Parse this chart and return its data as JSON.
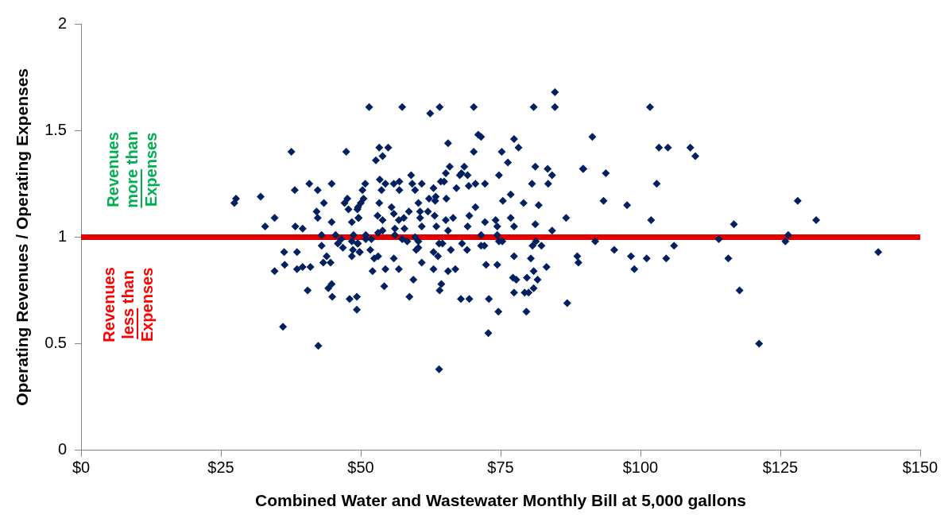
{
  "chart_data": {
    "type": "scatter",
    "xlabel": "Combined Water and Wastewater Monthly Bill at 5,000 gallons",
    "ylabel": "Operating Revenues / Operating Expenses",
    "xlim": [
      0,
      150
    ],
    "xticks": [
      {
        "value": 0,
        "label": "$0"
      },
      {
        "value": 25,
        "label": "$25"
      },
      {
        "value": 50,
        "label": "$50"
      },
      {
        "value": 75,
        "label": "$75"
      },
      {
        "value": 100,
        "label": "$100"
      },
      {
        "value": 125,
        "label": "$125"
      },
      {
        "value": 150,
        "label": "$150"
      }
    ],
    "ylim": [
      0,
      2
    ],
    "yticks": [
      0,
      0.5,
      1,
      1.5,
      2
    ],
    "grid": false,
    "legend": false,
    "marker": "diamond",
    "ref_lines": [
      {
        "axis": "y",
        "value": 1,
        "color": "#e00000"
      }
    ],
    "annotations": [
      "Revenues more than Expenses",
      "Revenues less than Expenses"
    ],
    "series": [
      {
        "color": "#002060",
        "x": [
          37.6,
          47.4,
          40.8,
          44.8,
          38.2,
          42.3,
          27.7,
          27.4,
          32.1,
          43.4,
          47.6,
          47.1,
          47.8,
          49.4,
          42.1,
          42.3,
          44.8,
          34.6,
          48.4,
          49.6,
          32.9,
          38.3,
          39.6,
          43.0,
          45.5,
          46.5,
          48.7,
          45.9,
          46.8,
          43.0,
          48.4,
          49.4,
          48.6,
          48.4,
          49.8,
          36.3,
          38.6,
          43.9,
          43.3,
          44.6,
          36.4,
          34.6,
          38.6,
          39.6,
          41.0,
          44.8,
          44.2,
          40.5,
          44.9,
          49.3,
          48.0,
          49.3,
          36.1,
          42.4,
          51.5,
          57.4,
          62.4,
          64.1,
          70.2,
          71.0,
          71.5,
          65.6,
          77.4,
          53.3,
          54.9,
          53.9,
          52.7,
          70.2,
          75.2,
          76.3,
          65.9,
          65.2,
          68.5,
          68.0,
          69.1,
          67.7,
          69.3,
          70.5,
          72.2,
          74.7,
          53.4,
          54.4,
          55.9,
          56.9,
          59.0,
          59.2,
          60.9,
          63.0,
          64.3,
          64.9,
          67.1,
          50.8,
          50.3,
          53.7,
          56.9,
          59.7,
          50.5,
          50.0,
          53.3,
          62.2,
          63.4,
          63.3,
          65.3,
          49.5,
          55.5,
          60.3,
          70.5,
          75.4,
          76.8,
          58.6,
          60.6,
          62.0,
          53.0,
          55.9,
          63.2,
          69.4,
          49.6,
          53.9,
          56.8,
          57.7,
          60.6,
          65.2,
          66.5,
          72.2,
          74.1,
          76.8,
          57.8,
          60.9,
          63.5,
          69.1,
          74.4,
          77.4,
          56.1,
          65.6,
          50.9,
          53.1,
          53.9,
          56.1,
          74.4,
          71.5,
          50.9,
          51.9,
          57.4,
          58.3,
          59.7,
          60.3,
          64.0,
          64.6,
          68.1,
          71.5,
          72.1,
          74.7,
          75.3,
          49.5,
          60.3,
          59.9,
          69.0,
          66.1,
          49.8,
          51.7,
          63.0,
          63.8,
          77.4,
          53.1,
          55.9,
          52.4,
          60.9,
          72.4,
          74.4,
          52.1,
          54.4,
          56.8,
          63.0,
          65.6,
          66.9,
          77.2,
          77.8,
          59.4,
          64.4,
          54.2,
          64.1,
          77.4,
          58.7,
          67.9,
          69.4,
          72.9,
          74.6,
          72.8,
          64.0,
          84.7,
          80.9,
          84.7,
          101.7,
          91.4,
          78.2,
          103.3,
          104.9,
          81.2,
          83.4,
          84.2,
          89.7,
          89.8,
          93.8,
          80.6,
          83.5,
          102.9,
          79.1,
          81.8,
          93.4,
          97.6,
          86.7,
          101.9,
          81.2,
          84.2,
          81.3,
          80.7,
          82.3,
          91.9,
          80.4,
          88.7,
          88.9,
          95.3,
          98.3,
          101.1,
          104.6,
          106.0,
          80.9,
          83.2,
          79.7,
          81.6,
          80.9,
          79.3,
          80.0,
          98.9,
          86.9,
          79.6,
          108.9,
          109.8,
          128.1,
          131.4,
          116.7,
          114.0,
          126.4,
          125.9,
          115.7,
          142.5,
          117.7,
          121.2
        ],
        "values": [
          1.4,
          1.4,
          1.25,
          1.25,
          1.22,
          1.22,
          1.18,
          1.16,
          1.19,
          1.16,
          1.18,
          1.16,
          1.13,
          1.13,
          1.12,
          1.09,
          1.07,
          1.09,
          1.07,
          1.09,
          1.05,
          1.05,
          1.04,
          1.01,
          1.01,
          0.99,
          1.01,
          0.97,
          0.95,
          0.96,
          0.98,
          0.97,
          0.94,
          0.91,
          0.93,
          0.93,
          0.93,
          0.91,
          0.88,
          0.88,
          0.87,
          0.84,
          0.85,
          0.86,
          0.86,
          0.78,
          0.76,
          0.75,
          0.72,
          0.72,
          0.71,
          0.66,
          0.58,
          0.49,
          1.61,
          1.61,
          1.58,
          1.61,
          1.61,
          1.48,
          1.47,
          1.44,
          1.46,
          1.42,
          1.42,
          1.38,
          1.36,
          1.4,
          1.4,
          1.35,
          1.33,
          1.3,
          1.33,
          1.3,
          1.29,
          1.29,
          1.24,
          1.25,
          1.25,
          1.29,
          1.27,
          1.25,
          1.25,
          1.26,
          1.29,
          1.25,
          1.25,
          1.23,
          1.26,
          1.26,
          1.23,
          1.25,
          1.22,
          1.22,
          1.22,
          1.22,
          1.18,
          1.16,
          1.16,
          1.18,
          1.19,
          1.17,
          1.18,
          1.14,
          1.14,
          1.16,
          1.14,
          1.17,
          1.2,
          1.12,
          1.12,
          1.12,
          1.1,
          1.11,
          1.1,
          1.1,
          1.09,
          1.08,
          1.08,
          1.09,
          1.09,
          1.08,
          1.09,
          1.07,
          1.08,
          1.09,
          1.04,
          1.05,
          1.05,
          1.05,
          1.05,
          1.05,
          1.04,
          1.03,
          1.01,
          1.02,
          1.03,
          1.01,
          1.01,
          1.01,
          0.99,
          0.99,
          0.99,
          0.98,
          1.0,
          0.98,
          0.97,
          0.97,
          0.97,
          0.96,
          0.96,
          0.98,
          0.98,
          0.97,
          0.95,
          0.94,
          0.94,
          0.94,
          0.93,
          0.94,
          0.93,
          0.91,
          0.91,
          0.91,
          0.9,
          0.9,
          0.88,
          0.87,
          0.87,
          0.84,
          0.85,
          0.85,
          0.85,
          0.84,
          0.85,
          0.81,
          0.8,
          0.8,
          0.78,
          0.77,
          0.75,
          0.74,
          0.72,
          0.71,
          0.71,
          0.71,
          0.65,
          0.55,
          0.38,
          1.68,
          1.61,
          1.61,
          1.61,
          1.47,
          1.42,
          1.42,
          1.42,
          1.33,
          1.32,
          1.29,
          1.32,
          1.32,
          1.3,
          1.25,
          1.25,
          1.25,
          1.16,
          1.15,
          1.17,
          1.15,
          1.09,
          1.08,
          1.06,
          1.03,
          0.98,
          0.96,
          0.96,
          0.98,
          0.9,
          0.91,
          0.88,
          0.94,
          0.91,
          0.9,
          0.9,
          0.96,
          0.84,
          0.86,
          0.81,
          0.8,
          0.76,
          0.74,
          0.74,
          0.85,
          0.69,
          0.65,
          1.42,
          1.38,
          1.17,
          1.08,
          1.06,
          0.99,
          1.01,
          0.98,
          0.9,
          0.93,
          0.75,
          0.5
        ]
      }
    ]
  }
}
